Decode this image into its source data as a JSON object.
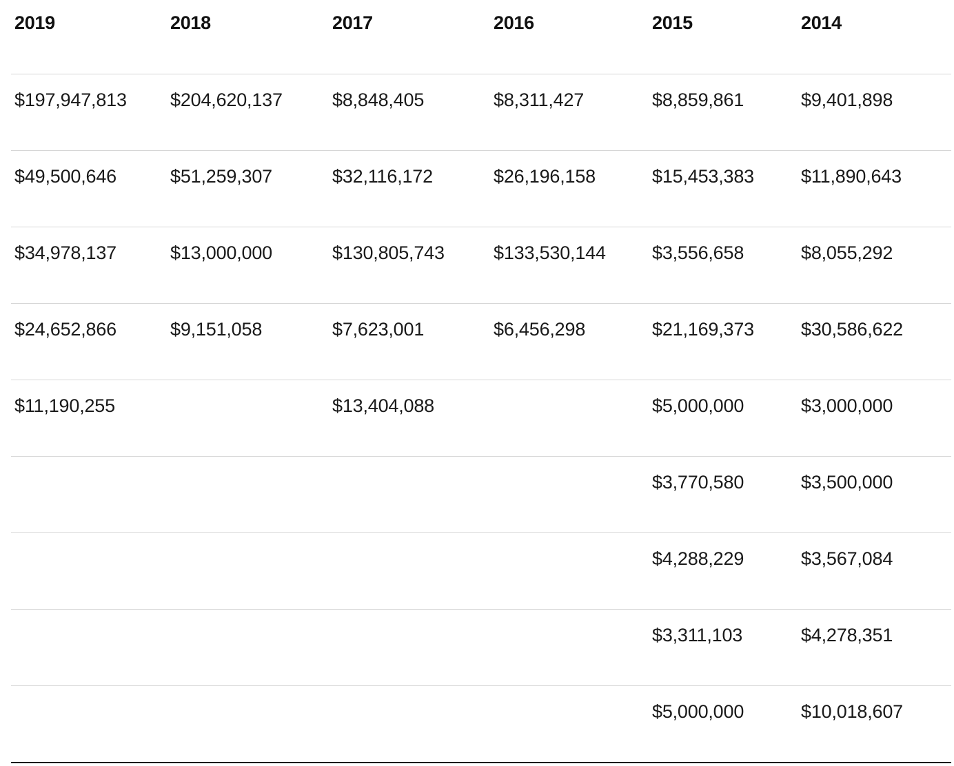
{
  "table": {
    "columns": [
      "2019",
      "2018",
      "2017",
      "2016",
      "2015",
      "2014"
    ],
    "rows": [
      [
        "$197,947,813",
        "$204,620,137",
        "$8,848,405",
        "$8,311,427",
        "$8,859,861",
        "$9,401,898"
      ],
      [
        "$49,500,646",
        "$51,259,307",
        "$32,116,172",
        "$26,196,158",
        "$15,453,383",
        "$11,890,643"
      ],
      [
        "$34,978,137",
        "$13,000,000",
        "$130,805,743",
        "$133,530,144",
        "$3,556,658",
        "$8,055,292"
      ],
      [
        "$24,652,866",
        "$9,151,058",
        "$7,623,001",
        "$6,456,298",
        "$21,169,373",
        "$30,586,622"
      ],
      [
        "$11,190,255",
        "",
        "$13,404,088",
        "",
        "$5,000,000",
        "$3,000,000"
      ],
      [
        "",
        "",
        "",
        "",
        "$3,770,580",
        "$3,500,000"
      ],
      [
        "",
        "",
        "",
        "",
        "$4,288,229",
        "$3,567,084"
      ],
      [
        "",
        "",
        "",
        "",
        "$3,311,103",
        "$4,278,351"
      ],
      [
        "",
        "",
        "",
        "",
        "$5,000,000",
        "$10,018,607"
      ]
    ]
  }
}
